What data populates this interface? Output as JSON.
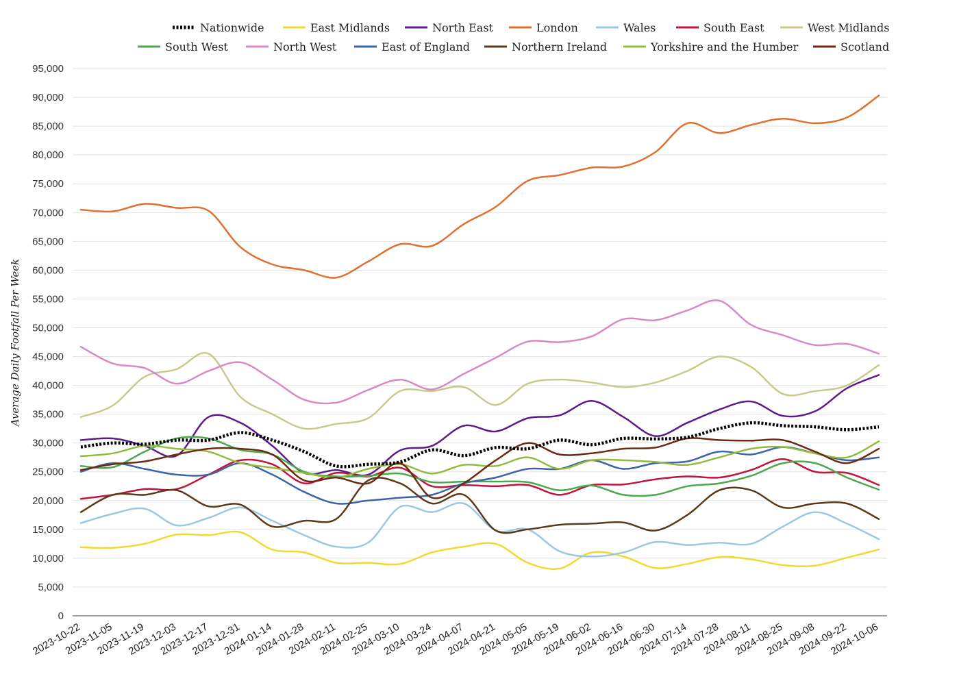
{
  "chart_data": {
    "type": "line",
    "title": "",
    "xlabel": "",
    "ylabel": "Average Daily Footfall Per Week",
    "ylim": [
      0,
      95000
    ],
    "yticks": [
      0,
      5000,
      10000,
      15000,
      20000,
      25000,
      30000,
      35000,
      40000,
      45000,
      50000,
      55000,
      60000,
      65000,
      70000,
      75000,
      80000,
      85000,
      90000,
      95000
    ],
    "ytick_labels": [
      "0",
      "5,000",
      "10,000",
      "15,000",
      "20,000",
      "25,000",
      "30,000",
      "35,000",
      "40,000",
      "45,000",
      "50,000",
      "55,000",
      "60,000",
      "65,000",
      "70,000",
      "75,000",
      "80,000",
      "85,000",
      "90,000",
      "95,000"
    ],
    "x_tick_labels": [
      "2023-10-22",
      "2023-11-05",
      "2023-11-19",
      "2023-12-03",
      "2023-12-17",
      "2023-12-31",
      "2024-01-14",
      "2024-01-28",
      "2024-02-11",
      "2024-02-25",
      "2024-03-10",
      "2024-03-24",
      "2024-04-07",
      "2024-04-21",
      "2024-05-05",
      "2024-05-19",
      "2024-06-02",
      "2024-06-16",
      "2024-06-30",
      "2024-07-14",
      "2024-07-28",
      "2024-08-11",
      "2024-08-25",
      "2024-09-08",
      "2024-09-22",
      "2024-10-06"
    ],
    "grid": true,
    "legend_position": "top",
    "series": [
      {
        "name": "Nationwide",
        "color": "#000000",
        "dashed": true,
        "values": [
          29300,
          30000,
          29800,
          30500,
          30500,
          31800,
          30500,
          28500,
          26000,
          26300,
          26700,
          28800,
          27800,
          29200,
          29000,
          30500,
          29700,
          30800,
          30700,
          31000,
          32500,
          33500,
          33000,
          32800,
          32300,
          32800
        ]
      },
      {
        "name": "East Midlands",
        "color": "#f2d930",
        "values": [
          11900,
          11800,
          12500,
          14100,
          14000,
          14500,
          11500,
          11000,
          9200,
          9200,
          9000,
          11000,
          12000,
          12500,
          9200,
          8200,
          11000,
          10300,
          8300,
          9000,
          10200,
          9800,
          8800,
          8700,
          10100,
          11500
        ]
      },
      {
        "name": "North East",
        "color": "#5e1a8c",
        "values": [
          30500,
          30800,
          29500,
          27800,
          34500,
          33500,
          29500,
          24800,
          25300,
          24500,
          28700,
          29500,
          33000,
          32000,
          34300,
          34800,
          37300,
          34500,
          31200,
          33500,
          35800,
          37200,
          34700,
          35500,
          39500,
          41800
        ]
      },
      {
        "name": "London",
        "color": "#e0702e",
        "values": [
          70500,
          70200,
          71500,
          70800,
          70300,
          64000,
          61000,
          60000,
          58700,
          61500,
          64500,
          64200,
          68000,
          71000,
          75500,
          76500,
          77800,
          78000,
          80500,
          85500,
          83800,
          85200,
          86300,
          85500,
          86500,
          90300
        ]
      },
      {
        "name": "Wales",
        "color": "#9ac8e2",
        "values": [
          16100,
          17700,
          18600,
          15700,
          17000,
          18800,
          16500,
          14000,
          12000,
          12700,
          18900,
          18000,
          19500,
          14800,
          15000,
          11200,
          10300,
          11000,
          12800,
          12300,
          12700,
          12500,
          15500,
          18000,
          16000,
          13300
        ]
      },
      {
        "name": "South East",
        "color": "#c0143c",
        "values": [
          20300,
          21000,
          22000,
          22000,
          24500,
          27000,
          26300,
          23000,
          24800,
          24200,
          25700,
          22500,
          22700,
          22500,
          22700,
          21000,
          22700,
          22800,
          23700,
          24200,
          24000,
          25300,
          27200,
          25000,
          24800,
          22700
        ]
      },
      {
        "name": "West Midlands",
        "color": "#c9c98a",
        "values": [
          34500,
          36500,
          41500,
          42800,
          45500,
          38000,
          35000,
          32500,
          33300,
          34300,
          39000,
          39000,
          39700,
          36600,
          40300,
          41000,
          40500,
          39700,
          40500,
          42500,
          45000,
          43200,
          38500,
          39000,
          40000,
          43500
        ]
      },
      {
        "name": "South West",
        "color": "#4da84d",
        "values": [
          26000,
          25800,
          28500,
          30800,
          30800,
          28800,
          28000,
          25000,
          24200,
          24300,
          24700,
          23200,
          23300,
          23300,
          23200,
          21800,
          22600,
          21000,
          21000,
          22500,
          23000,
          24300,
          26500,
          26500,
          24000,
          21900
        ]
      },
      {
        "name": "North West",
        "color": "#d98ac4",
        "values": [
          46700,
          43800,
          43000,
          40300,
          42500,
          44000,
          41000,
          37500,
          37000,
          39200,
          41000,
          39300,
          42000,
          44800,
          47600,
          47500,
          48500,
          51500,
          51300,
          53000,
          54700,
          50500,
          48700,
          47000,
          47200,
          45500
        ]
      },
      {
        "name": "East of England",
        "color": "#3c64a8",
        "values": [
          25000,
          26500,
          25500,
          24500,
          24500,
          26500,
          24500,
          21500,
          19500,
          20000,
          20500,
          21000,
          23000,
          24000,
          25500,
          25500,
          27000,
          25500,
          26500,
          26800,
          28500,
          28000,
          29300,
          28200,
          27000,
          27500
        ]
      },
      {
        "name": "Northern Ireland",
        "color": "#5a3a1a",
        "values": [
          18000,
          21000,
          21000,
          21800,
          19000,
          19300,
          15500,
          16500,
          16800,
          23500,
          23000,
          19500,
          21000,
          14800,
          15000,
          15800,
          16000,
          16200,
          14800,
          17500,
          21800,
          21800,
          18800,
          19500,
          19500,
          16800
        ]
      },
      {
        "name": "Yorkshire and the Humber",
        "color": "#92bb3c",
        "values": [
          27700,
          28200,
          29500,
          29000,
          28500,
          26500,
          25700,
          24800,
          24000,
          25500,
          26300,
          24700,
          26200,
          26000,
          27500,
          25500,
          27000,
          27000,
          26700,
          26200,
          27500,
          29000,
          29300,
          28200,
          27500,
          30300
        ]
      },
      {
        "name": "Scotland",
        "color": "#6a2a14",
        "values": [
          25300,
          26300,
          26800,
          28000,
          29000,
          29000,
          28000,
          23500,
          24000,
          23000,
          26500,
          20500,
          23000,
          27000,
          30000,
          28000,
          28200,
          29000,
          29200,
          30800,
          30500,
          30400,
          30500,
          28500,
          26500,
          29000
        ]
      }
    ]
  }
}
